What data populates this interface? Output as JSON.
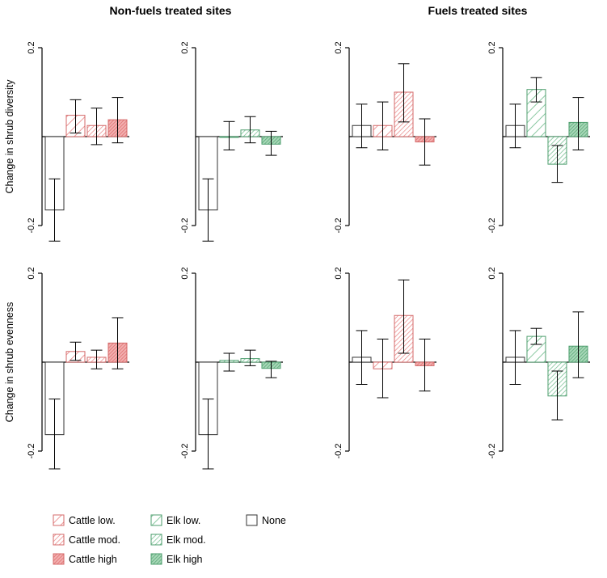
{
  "figure": {
    "left_title": "Non-fuels treated sites",
    "right_title": "Fuels treated sites",
    "row_ylabels": [
      "Change in shrub diversity",
      "Change in shrub evenness"
    ],
    "tick_top": "0.2",
    "tick_bottom": "-0.2"
  },
  "legend": [
    {
      "label": "Cattle low.",
      "color": "#e88080",
      "pattern": "hatch-sparse"
    },
    {
      "label": "Cattle mod.",
      "color": "#e88080",
      "pattern": "hatch-dense"
    },
    {
      "label": "Cattle high",
      "color": "#e88080",
      "pattern": "hatch-solid"
    },
    {
      "label": "Elk low.",
      "color": "#6dbb8a",
      "pattern": "hatch-sparse"
    },
    {
      "label": "Elk mod.",
      "color": "#6dbb8a",
      "pattern": "hatch-dense"
    },
    {
      "label": "Elk high",
      "color": "#6dbb8a",
      "pattern": "hatch-solid"
    },
    {
      "label": "None",
      "color": "#ffffff",
      "pattern": "none"
    }
  ],
  "colors": {
    "cattle": "#e88080",
    "elk": "#6dbb8a",
    "none": "#ffffff",
    "axis": "#000000"
  },
  "chart_data": [
    {
      "type": "bar",
      "row": "Change in shrub diversity",
      "group": "Non-fuels treated sites",
      "species": "cattle",
      "ylim": [
        -0.2,
        0.2
      ],
      "categories": [
        "None",
        "Low",
        "Mod.",
        "High"
      ],
      "values": [
        -0.165,
        0.048,
        0.025,
        0.038
      ],
      "errors": [
        [
          -0.235,
          -0.095
        ],
        [
          0.008,
          0.083
        ],
        [
          -0.018,
          0.064
        ],
        [
          -0.014,
          0.088
        ]
      ]
    },
    {
      "type": "bar",
      "row": "Change in shrub diversity",
      "group": "Non-fuels treated sites",
      "species": "elk",
      "ylim": [
        -0.2,
        0.2
      ],
      "categories": [
        "None",
        "Low",
        "Mod.",
        "High"
      ],
      "values": [
        -0.165,
        0.0,
        0.015,
        -0.017
      ],
      "errors": [
        [
          -0.235,
          -0.095
        ],
        [
          -0.03,
          0.034
        ],
        [
          -0.014,
          0.045
        ],
        [
          -0.042,
          0.012
        ]
      ]
    },
    {
      "type": "bar",
      "row": "Change in shrub diversity",
      "group": "Fuels treated sites",
      "species": "cattle",
      "ylim": [
        -0.2,
        0.2
      ],
      "categories": [
        "None",
        "Low",
        "Mod.",
        "High"
      ],
      "values": [
        0.025,
        0.025,
        0.1,
        -0.012
      ],
      "errors": [
        [
          -0.025,
          0.073
        ],
        [
          -0.03,
          0.078
        ],
        [
          0.033,
          0.164
        ],
        [
          -0.064,
          0.04
        ]
      ]
    },
    {
      "type": "bar",
      "row": "Change in shrub diversity",
      "group": "Fuels treated sites",
      "species": "elk",
      "ylim": [
        -0.2,
        0.2
      ],
      "categories": [
        "None",
        "Low",
        "Mod.",
        "High"
      ],
      "values": [
        0.025,
        0.106,
        -0.062,
        0.032
      ],
      "errors": [
        [
          -0.025,
          0.073
        ],
        [
          0.078,
          0.133
        ],
        [
          -0.103,
          -0.02
        ],
        [
          -0.03,
          0.088
        ]
      ]
    },
    {
      "type": "bar",
      "row": "Change in shrub evenness",
      "group": "Non-fuels treated sites",
      "species": "cattle",
      "ylim": [
        -0.2,
        0.2
      ],
      "categories": [
        "None",
        "Low",
        "Mod.",
        "High"
      ],
      "values": [
        -0.163,
        0.024,
        0.011,
        0.043
      ],
      "errors": [
        [
          -0.24,
          -0.083
        ],
        [
          0.004,
          0.045
        ],
        [
          -0.015,
          0.027
        ],
        [
          -0.015,
          0.1
        ]
      ]
    },
    {
      "type": "bar",
      "row": "Change in shrub evenness",
      "group": "Non-fuels treated sites",
      "species": "elk",
      "ylim": [
        -0.2,
        0.2
      ],
      "categories": [
        "None",
        "Low",
        "Mod.",
        "High"
      ],
      "values": [
        -0.163,
        0.004,
        0.008,
        -0.014
      ],
      "errors": [
        [
          -0.24,
          -0.083
        ],
        [
          -0.02,
          0.02
        ],
        [
          -0.008,
          0.027
        ],
        [
          -0.035,
          0.002
        ]
      ]
    },
    {
      "type": "bar",
      "row": "Change in shrub evenness",
      "group": "Fuels treated sites",
      "species": "cattle",
      "ylim": [
        -0.2,
        0.2
      ],
      "categories": [
        "None",
        "Low",
        "Mod.",
        "High"
      ],
      "values": [
        0.011,
        -0.015,
        0.105,
        -0.008
      ],
      "errors": [
        [
          -0.05,
          0.071
        ],
        [
          -0.08,
          0.052
        ],
        [
          0.02,
          0.185
        ],
        [
          -0.065,
          0.052
        ]
      ]
    },
    {
      "type": "bar",
      "row": "Change in shrub evenness",
      "group": "Fuels treated sites",
      "species": "elk",
      "ylim": [
        -0.2,
        0.2
      ],
      "categories": [
        "None",
        "Low",
        "Mod.",
        "High"
      ],
      "values": [
        0.011,
        0.058,
        -0.076,
        0.036
      ],
      "errors": [
        [
          -0.05,
          0.071
        ],
        [
          0.04,
          0.076
        ],
        [
          -0.13,
          -0.02
        ],
        [
          -0.035,
          0.113
        ]
      ]
    }
  ]
}
